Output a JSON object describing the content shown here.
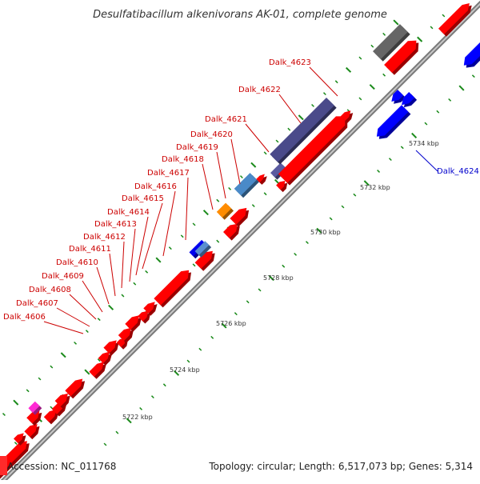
{
  "title": "Desulfatibacillum alkenivorans AK-01, complete genome",
  "footer": {
    "accession": "Accession: NC_011768",
    "summary": "Topology: circular; Length: 6,517,073 bp; Genes: 5,314"
  },
  "colors": {
    "forward_gene": "#ff0000",
    "reverse_gene": "#0000ff",
    "backbone": "#9a9a9a",
    "tick": "#1a8a1a",
    "forward_label": "#cc0000",
    "reverse_label": "#0000cc"
  },
  "scale_labels": [
    {
      "kbp": 5722,
      "text": "5722 kbp"
    },
    {
      "kbp": 5724,
      "text": "5724 kbp"
    },
    {
      "kbp": 5726,
      "text": "5726 kbp"
    },
    {
      "kbp": 5728,
      "text": "5728 kbp"
    },
    {
      "kbp": 5730,
      "text": "5730 kbp"
    },
    {
      "kbp": 5732,
      "text": "5732 kbp"
    },
    {
      "kbp": 5734,
      "text": "5734 kbp"
    }
  ],
  "gene_labels": [
    {
      "text": "Dalk_4606",
      "strand": "+"
    },
    {
      "text": "Dalk_4607",
      "strand": "+"
    },
    {
      "text": "Dalk_4608",
      "strand": "+"
    },
    {
      "text": "Dalk_4609",
      "strand": "+"
    },
    {
      "text": "Dalk_4610",
      "strand": "+"
    },
    {
      "text": "Dalk_4611",
      "strand": "+"
    },
    {
      "text": "Dalk_4612",
      "strand": "+"
    },
    {
      "text": "Dalk_4613",
      "strand": "+"
    },
    {
      "text": "Dalk_4614",
      "strand": "+"
    },
    {
      "text": "Dalk_4615",
      "strand": "+"
    },
    {
      "text": "Dalk_4616",
      "strand": "+"
    },
    {
      "text": "Dalk_4617",
      "strand": "+"
    },
    {
      "text": "Dalk_4618",
      "strand": "+"
    },
    {
      "text": "Dalk_4619",
      "strand": "+"
    },
    {
      "text": "Dalk_4620",
      "strand": "+"
    },
    {
      "text": "Dalk_4621",
      "strand": "+"
    },
    {
      "text": "Dalk_4622",
      "strand": "+"
    },
    {
      "text": "Dalk_4623",
      "strand": "+"
    },
    {
      "text": "Dalk_4624",
      "strand": "-"
    }
  ]
}
